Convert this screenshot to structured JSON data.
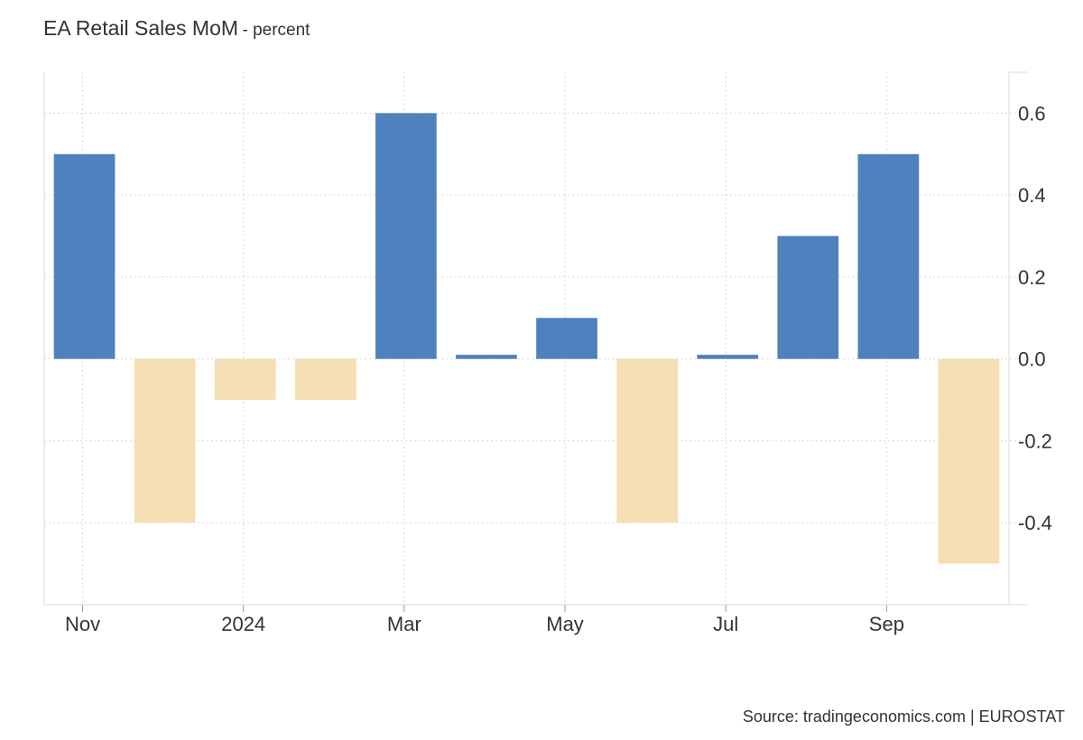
{
  "chart_data": {
    "type": "bar",
    "title": "EA Retail Sales MoM",
    "subtitle": "- percent",
    "categories": [
      "Nov 2023",
      "Dec 2023",
      "Jan 2024",
      "Feb 2024",
      "Mar 2024",
      "Apr 2024",
      "May 2024",
      "Jun 2024",
      "Jul 2024",
      "Aug 2024",
      "Sep 2024",
      "Oct 2024"
    ],
    "values": [
      0.5,
      -0.4,
      -0.1,
      -0.1,
      0.6,
      0.01,
      0.1,
      -0.4,
      0.01,
      0.3,
      0.5,
      -0.5
    ],
    "x_tick_labels": [
      {
        "category_index": 0,
        "label": "Nov"
      },
      {
        "category_index": 2,
        "label": "2024"
      },
      {
        "category_index": 4,
        "label": "Mar"
      },
      {
        "category_index": 6,
        "label": "May"
      },
      {
        "category_index": 8,
        "label": "Jul"
      },
      {
        "category_index": 10,
        "label": "Sep"
      }
    ],
    "y_ticks": [
      0.6,
      0.4,
      0.2,
      0.0,
      -0.2,
      -0.4
    ],
    "y_tick_labels": [
      "0.6",
      "0.4",
      "0.2",
      "0.0",
      "-0.2",
      "-0.4"
    ],
    "ylim": [
      -0.6,
      0.7
    ],
    "y_axis_side": "right",
    "grid": true,
    "legend": "none",
    "colors": {
      "positive": "#4e81bd",
      "negative": "#f5deb3",
      "grid": "#d9d9d9",
      "axis": "#d9d9d9"
    }
  },
  "source": "Source: tradingeconomics.com | EUROSTAT"
}
